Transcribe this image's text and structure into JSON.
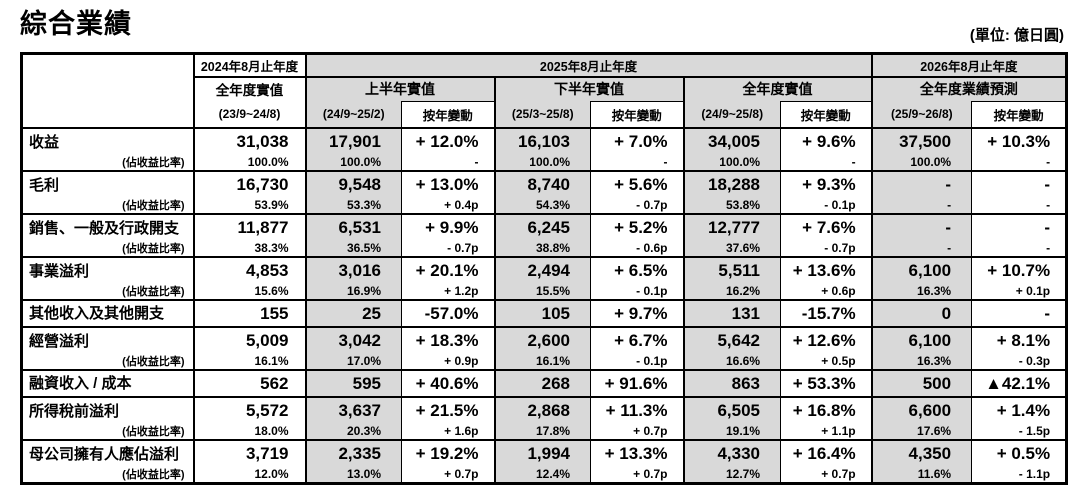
{
  "page": {
    "title": "綜合業績",
    "unit_label": "(單位: 億日圓)"
  },
  "colors": {
    "shaded_cell": "#d9d9d9",
    "border": "#000000",
    "text": "#000000",
    "background": "#ffffff"
  },
  "table": {
    "header": {
      "col_2024": {
        "year": "2024年8月止年度",
        "label": "全年度實值",
        "period": "(23/9~24/8)"
      },
      "group_2025": {
        "year": "2025年8月止年度",
        "sections": [
          {
            "label": "上半年實值",
            "period": "(24/9~25/2)",
            "yoy": "按年變動"
          },
          {
            "label": "下半年實值",
            "period": "(25/3~25/8)",
            "yoy": "按年變動"
          },
          {
            "label": "全年度實值",
            "period": "(24/9~25/8)",
            "yoy": "按年變動"
          }
        ]
      },
      "group_2026": {
        "year": "2026年8月止年度",
        "section": {
          "label": "全年度業績預測",
          "period": "(25/9~26/8)",
          "yoy": "按年變動"
        }
      }
    },
    "sub_label": "(佔收益比率)",
    "rows": [
      {
        "key": "revenue",
        "label": "收益",
        "sub": true,
        "fy2024": [
          "31,038",
          "100.0%"
        ],
        "h1": [
          "17,901",
          "100.0%"
        ],
        "h1_yoy": [
          "+ 12.0%",
          "-"
        ],
        "h2": [
          "16,103",
          "100.0%"
        ],
        "h2_yoy": [
          "+ 7.0%",
          "-"
        ],
        "fy": [
          "34,005",
          "100.0%"
        ],
        "fy_yoy": [
          "+ 9.6%",
          "-"
        ],
        "fc": [
          "37,500",
          "100.0%"
        ],
        "fc_yoy": [
          "+ 10.3%",
          "-"
        ]
      },
      {
        "key": "gross-profit",
        "label": "毛利",
        "sub": true,
        "fy2024": [
          "16,730",
          "53.9%"
        ],
        "h1": [
          "9,548",
          "53.3%"
        ],
        "h1_yoy": [
          "+ 13.0%",
          "+ 0.4p"
        ],
        "h2": [
          "8,740",
          "54.3%"
        ],
        "h2_yoy": [
          "+ 5.6%",
          "- 0.7p"
        ],
        "fy": [
          "18,288",
          "53.8%"
        ],
        "fy_yoy": [
          "+ 9.3%",
          "- 0.1p"
        ],
        "fc": [
          "-",
          "-"
        ],
        "fc_yoy": [
          "-",
          "-"
        ]
      },
      {
        "key": "sga-expenses",
        "label": "銷售、一般及行政開支",
        "sub": true,
        "fy2024": [
          "11,877",
          "38.3%"
        ],
        "h1": [
          "6,531",
          "36.5%"
        ],
        "h1_yoy": [
          "+ 9.9%",
          "- 0.7p"
        ],
        "h2": [
          "6,245",
          "38.8%"
        ],
        "h2_yoy": [
          "+ 5.2%",
          "- 0.6p"
        ],
        "fy": [
          "12,777",
          "37.6%"
        ],
        "fy_yoy": [
          "+ 7.6%",
          "- 0.7p"
        ],
        "fc": [
          "-",
          "-"
        ],
        "fc_yoy": [
          "-",
          "-"
        ]
      },
      {
        "key": "business-profit",
        "label": "事業溢利",
        "sub": true,
        "fy2024": [
          "4,853",
          "15.6%"
        ],
        "h1": [
          "3,016",
          "16.9%"
        ],
        "h1_yoy": [
          "+ 20.1%",
          "+ 1.2p"
        ],
        "h2": [
          "2,494",
          "15.5%"
        ],
        "h2_yoy": [
          "+ 6.5%",
          "- 0.1p"
        ],
        "fy": [
          "5,511",
          "16.2%"
        ],
        "fy_yoy": [
          "+ 13.6%",
          "+ 0.6p"
        ],
        "fc": [
          "6,100",
          "16.3%"
        ],
        "fc_yoy": [
          "+ 10.7%",
          "+ 0.1p"
        ]
      },
      {
        "key": "other-income-expenses",
        "label": "其他收入及其他開支",
        "sub": false,
        "fy2024": [
          "155"
        ],
        "h1": [
          "25"
        ],
        "h1_yoy": [
          "-57.0%"
        ],
        "h2": [
          "105"
        ],
        "h2_yoy": [
          "+ 9.7%"
        ],
        "fy": [
          "131"
        ],
        "fy_yoy": [
          "-15.7%"
        ],
        "fc": [
          "0"
        ],
        "fc_yoy": [
          "-"
        ]
      },
      {
        "key": "operating-profit",
        "label": "經營溢利",
        "sub": true,
        "fy2024": [
          "5,009",
          "16.1%"
        ],
        "h1": [
          "3,042",
          "17.0%"
        ],
        "h1_yoy": [
          "+ 18.3%",
          "+ 0.9p"
        ],
        "h2": [
          "2,600",
          "16.1%"
        ],
        "h2_yoy": [
          "+ 6.7%",
          "- 0.1p"
        ],
        "fy": [
          "5,642",
          "16.6%"
        ],
        "fy_yoy": [
          "+ 12.6%",
          "+ 0.5p"
        ],
        "fc": [
          "6,100",
          "16.3%"
        ],
        "fc_yoy": [
          "+ 8.1%",
          "- 0.3p"
        ]
      },
      {
        "key": "finance-income-costs",
        "label": "融資收入 / 成本",
        "sub": false,
        "fy2024": [
          "562"
        ],
        "h1": [
          "595"
        ],
        "h1_yoy": [
          "+ 40.6%"
        ],
        "h2": [
          "268"
        ],
        "h2_yoy": [
          "+ 91.6%"
        ],
        "fy": [
          "863"
        ],
        "fy_yoy": [
          "+ 53.3%"
        ],
        "fc": [
          "500"
        ],
        "fc_yoy": [
          "▲42.1%"
        ]
      },
      {
        "key": "profit-before-income-tax",
        "label": "所得稅前溢利",
        "sub": true,
        "fy2024": [
          "5,572",
          "18.0%"
        ],
        "h1": [
          "3,637",
          "20.3%"
        ],
        "h1_yoy": [
          "+ 21.5%",
          "+ 1.6p"
        ],
        "h2": [
          "2,868",
          "17.8%"
        ],
        "h2_yoy": [
          "+ 11.3%",
          "+ 0.7p"
        ],
        "fy": [
          "6,505",
          "19.1%"
        ],
        "fy_yoy": [
          "+ 16.8%",
          "+ 1.1p"
        ],
        "fc": [
          "6,600",
          "17.6%"
        ],
        "fc_yoy": [
          "+ 1.4%",
          "- 1.5p"
        ]
      },
      {
        "key": "profit-attributable-to-owners",
        "label": "母公司擁有人應佔溢利",
        "sub": true,
        "fy2024": [
          "3,719",
          "12.0%"
        ],
        "h1": [
          "2,335",
          "13.0%"
        ],
        "h1_yoy": [
          "+ 19.2%",
          "+ 0.7p"
        ],
        "h2": [
          "1,994",
          "12.4%"
        ],
        "h2_yoy": [
          "+ 13.3%",
          "+ 0.7p"
        ],
        "fy": [
          "4,330",
          "12.7%"
        ],
        "fy_yoy": [
          "+ 16.4%",
          "+ 0.7p"
        ],
        "fc": [
          "4,350",
          "11.6%"
        ],
        "fc_yoy": [
          "+ 0.5%",
          "- 1.1p"
        ]
      }
    ]
  }
}
